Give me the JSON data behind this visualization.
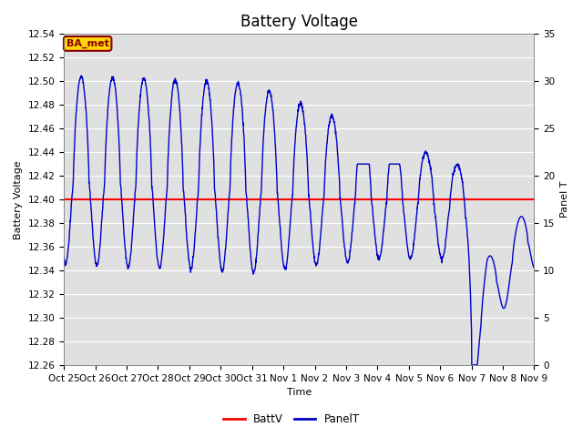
{
  "title": "Battery Voltage",
  "xlabel": "Time",
  "ylabel_left": "Battery Voltage",
  "ylabel_right": "Panel T",
  "annotation_text": "BA_met",
  "annotation_color": "#8B0000",
  "annotation_bg": "#FFD700",
  "left_ylim": [
    12.26,
    12.54
  ],
  "right_ylim": [
    0,
    35
  ],
  "left_yticks": [
    12.26,
    12.28,
    12.3,
    12.32,
    12.34,
    12.36,
    12.38,
    12.4,
    12.42,
    12.44,
    12.46,
    12.48,
    12.5,
    12.52,
    12.54
  ],
  "right_yticks": [
    0,
    5,
    10,
    15,
    20,
    25,
    30,
    35
  ],
  "battv_value": 12.4,
  "battv_color": "#FF0000",
  "panelt_color": "#0000CC",
  "bg_color": "#E0E0E0",
  "fig_bg_color": "#FFFFFF",
  "legend_labels": [
    "BattV",
    "PanelT"
  ],
  "xtick_labels": [
    "Oct 25",
    "Oct 26",
    "Oct 27",
    "Oct 28",
    "Oct 29",
    "Oct 30",
    "Oct 31",
    "Nov 1",
    "Nov 2",
    "Nov 3",
    "Nov 4",
    "Nov 5",
    "Nov 6",
    "Nov 7",
    "Nov 8",
    "Nov 9"
  ],
  "title_fontsize": 12,
  "axis_label_fontsize": 8,
  "tick_fontsize": 7.5
}
